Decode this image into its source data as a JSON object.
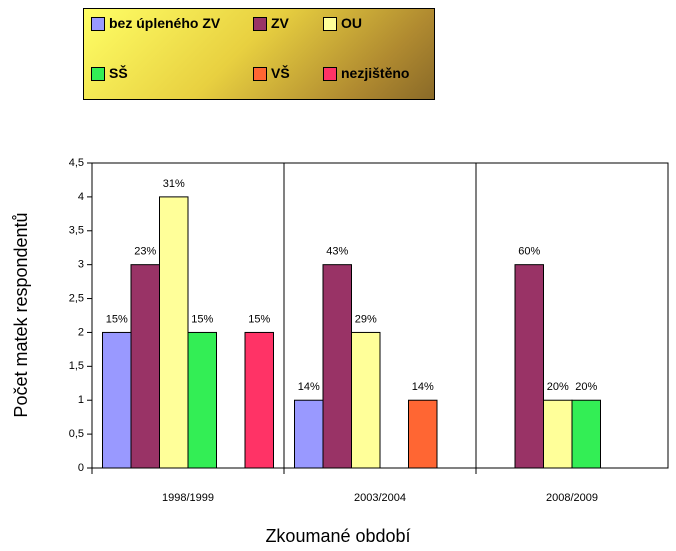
{
  "chart_data": {
    "type": "bar",
    "categories": [
      "1998/1999",
      "2003/2004",
      "2008/2009"
    ],
    "series": [
      {
        "name": "bez úpleného ZV",
        "color": "#9999ff",
        "values": [
          2,
          1,
          null
        ],
        "value_labels": [
          "15%",
          "14%",
          null
        ]
      },
      {
        "name": "ZV",
        "color": "#993366",
        "values": [
          3,
          3,
          3
        ],
        "value_labels": [
          "23%",
          "43%",
          "60%"
        ]
      },
      {
        "name": "OU",
        "color": "#ffff99",
        "values": [
          4,
          2,
          1
        ],
        "value_labels": [
          "31%",
          "29%",
          "20%"
        ]
      },
      {
        "name": "SŠ",
        "color": "#33ee55",
        "values": [
          2,
          null,
          1
        ],
        "value_labels": [
          "15%",
          null,
          "20%"
        ]
      },
      {
        "name": "VŠ",
        "color": "#ff6633",
        "values": [
          null,
          1,
          null
        ],
        "value_labels": [
          null,
          "14%",
          null
        ]
      },
      {
        "name": "nezjištěno",
        "color": "#ff3366",
        "values": [
          2,
          null,
          null
        ],
        "value_labels": [
          "15%",
          null,
          null
        ]
      }
    ],
    "x_label": "Zkoumané období",
    "y_label": "Počet matek respondentů",
    "ylim": [
      0,
      4.5
    ],
    "yticks": [
      0,
      {
        "value": 0.5,
        "label": "0,5"
      },
      1,
      {
        "value": 1.5,
        "label": "1,5"
      },
      2,
      {
        "value": 2.5,
        "label": "2,5"
      },
      3,
      {
        "value": 3.5,
        "label": "3,5"
      },
      4,
      {
        "value": 4.5,
        "label": "4,5"
      }
    ],
    "grid": false,
    "legend": "top"
  }
}
